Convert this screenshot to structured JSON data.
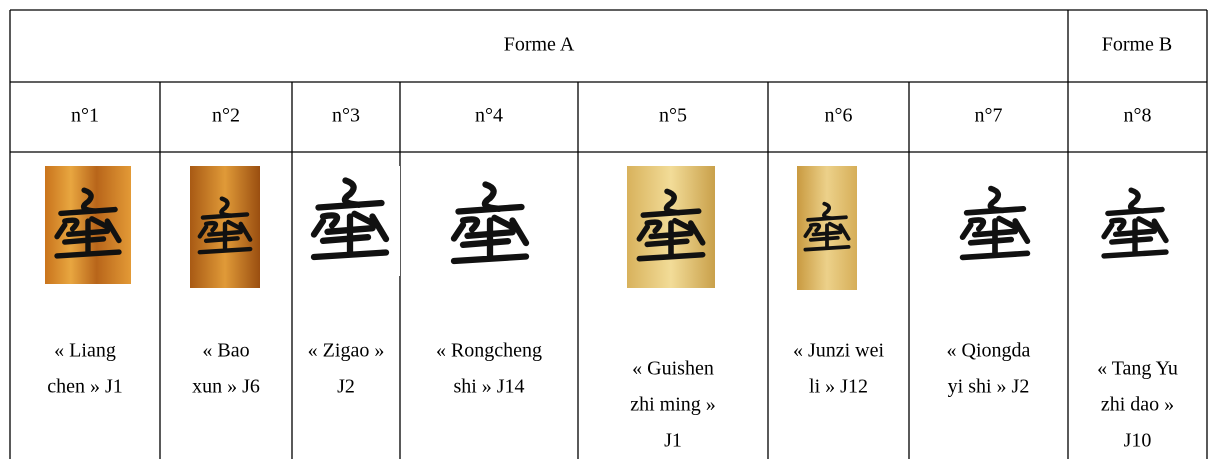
{
  "table": {
    "header": [
      "Forme A",
      "Forme B"
    ],
    "numbers": [
      "n°1",
      "n°2",
      "n°3",
      "n°4",
      "n°5",
      "n°6",
      "n°7",
      "n°8"
    ],
    "captions": [
      [
        "« Liang",
        "chen » J1"
      ],
      [
        "« Bao",
        "xun » J6"
      ],
      [
        "« Zigao »",
        "J2"
      ],
      [
        "« Rongcheng",
        "shi » J14"
      ],
      [
        "« Guishen",
        "zhi ming »",
        "J1"
      ],
      [
        "« Junzi wei",
        "li » J12"
      ],
      [
        "« Qiongda",
        "yi shi » J2"
      ],
      [
        "« Tang Yu",
        "zhi dao »",
        "J10"
      ]
    ]
  }
}
